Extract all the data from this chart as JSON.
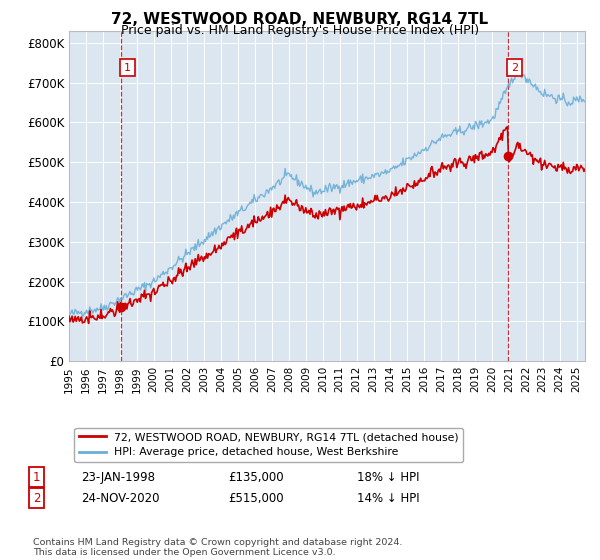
{
  "title": "72, WESTWOOD ROAD, NEWBURY, RG14 7TL",
  "subtitle": "Price paid vs. HM Land Registry's House Price Index (HPI)",
  "plot_bg_color": "#dce6f1",
  "red_line_label": "72, WESTWOOD ROAD, NEWBURY, RG14 7TL (detached house)",
  "blue_line_label": "HPI: Average price, detached house, West Berkshire",
  "marker1_date_str": "23-JAN-1998",
  "marker1_price": 135000,
  "marker1_hpi_pct": "18% ↓ HPI",
  "marker2_date_str": "24-NOV-2020",
  "marker2_price": 515000,
  "marker2_hpi_pct": "14% ↓ HPI",
  "footnote": "Contains HM Land Registry data © Crown copyright and database right 2024.\nThis data is licensed under the Open Government Licence v3.0.",
  "red_color": "#cc0000",
  "blue_color": "#6baed6",
  "dashed_color": "#cc0000",
  "marker_box_color": "#cc0000",
  "sale1_year": 1998.06,
  "sale2_year": 2020.92,
  "sale1_price": 135000,
  "sale2_price": 515000,
  "ylim": [
    0,
    830000
  ],
  "xlim": [
    1995,
    2025.5
  ],
  "yticks": [
    0,
    100000,
    200000,
    300000,
    400000,
    500000,
    600000,
    700000,
    800000
  ],
  "ylabels": [
    "£0",
    "£100K",
    "£200K",
    "£300K",
    "£400K",
    "£500K",
    "£600K",
    "£700K",
    "£800K"
  ]
}
